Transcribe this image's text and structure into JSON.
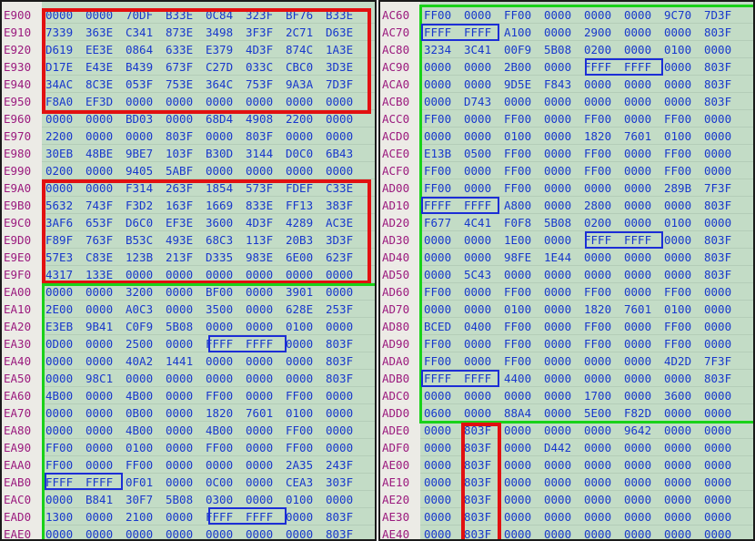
{
  "colors": {
    "background": "#c3dcc6",
    "address": "#9b1a7e",
    "hex": "#1838cc",
    "highlight_red": "#e21010",
    "highlight_green": "#19d219",
    "highlight_blue": "#1c2ed6"
  },
  "left_panel": {
    "rows": [
      {
        "addr": "E900",
        "cells": [
          "0000",
          "0000",
          "70DF",
          "B33E",
          "0C84",
          "323F",
          "BF76",
          "B33E"
        ]
      },
      {
        "addr": "E910",
        "cells": [
          "7339",
          "363E",
          "C341",
          "873E",
          "3498",
          "3F3F",
          "2C71",
          "D63E"
        ]
      },
      {
        "addr": "E920",
        "cells": [
          "D619",
          "EE3E",
          "0864",
          "633E",
          "E379",
          "4D3F",
          "874C",
          "1A3E"
        ]
      },
      {
        "addr": "E930",
        "cells": [
          "D17E",
          "E43E",
          "B439",
          "673F",
          "C27D",
          "033C",
          "CBC0",
          "3D3E"
        ]
      },
      {
        "addr": "E940",
        "cells": [
          "34AC",
          "8C3E",
          "053F",
          "753E",
          "364C",
          "753F",
          "9A3A",
          "7D3F"
        ]
      },
      {
        "addr": "E950",
        "cells": [
          "F8A0",
          "EF3D",
          "0000",
          "0000",
          "0000",
          "0000",
          "0000",
          "0000"
        ]
      },
      {
        "addr": "E960",
        "cells": [
          "0000",
          "0000",
          "BD03",
          "0000",
          "68D4",
          "4908",
          "2200",
          "0000"
        ]
      },
      {
        "addr": "E970",
        "cells": [
          "2200",
          "0000",
          "0000",
          "803F",
          "0000",
          "803F",
          "0000",
          "0000"
        ]
      },
      {
        "addr": "E980",
        "cells": [
          "30EB",
          "48BE",
          "9BE7",
          "103F",
          "B30D",
          "3144",
          "D0C0",
          "6B43"
        ]
      },
      {
        "addr": "E990",
        "cells": [
          "0200",
          "0000",
          "9405",
          "5ABF",
          "0000",
          "0000",
          "0000",
          "0000"
        ]
      },
      {
        "addr": "E9A0",
        "cells": [
          "0000",
          "0000",
          "F314",
          "263F",
          "1854",
          "573F",
          "FDEF",
          "C33E"
        ]
      },
      {
        "addr": "E9B0",
        "cells": [
          "5632",
          "743F",
          "F3D2",
          "163F",
          "1669",
          "833E",
          "FF13",
          "383F"
        ]
      },
      {
        "addr": "E9C0",
        "cells": [
          "3AF6",
          "653F",
          "D6C0",
          "EF3E",
          "3600",
          "4D3F",
          "4289",
          "AC3E"
        ]
      },
      {
        "addr": "E9D0",
        "cells": [
          "F89F",
          "763F",
          "B53C",
          "493E",
          "68C3",
          "113F",
          "20B3",
          "3D3F"
        ]
      },
      {
        "addr": "E9E0",
        "cells": [
          "57E3",
          "C83E",
          "123B",
          "213F",
          "D335",
          "983E",
          "6E00",
          "623F"
        ]
      },
      {
        "addr": "E9F0",
        "cells": [
          "4317",
          "133E",
          "0000",
          "0000",
          "0000",
          "0000",
          "0000",
          "0000"
        ]
      },
      {
        "addr": "EA00",
        "cells": [
          "0000",
          "0000",
          "3200",
          "0000",
          "BF00",
          "0000",
          "3901",
          "0000"
        ]
      },
      {
        "addr": "EA10",
        "cells": [
          "2E00",
          "0000",
          "A0C3",
          "0000",
          "3500",
          "0000",
          "628E",
          "253F"
        ]
      },
      {
        "addr": "EA20",
        "cells": [
          "E3EB",
          "9B41",
          "C0F9",
          "5B08",
          "0000",
          "0000",
          "0100",
          "0000"
        ]
      },
      {
        "addr": "EA30",
        "cells": [
          "0D00",
          "0000",
          "2500",
          "0000",
          "FFFF",
          "FFFF",
          "0000",
          "803F"
        ]
      },
      {
        "addr": "EA40",
        "cells": [
          "0000",
          "0000",
          "40A2",
          "1441",
          "0000",
          "0000",
          "0000",
          "803F"
        ]
      },
      {
        "addr": "EA50",
        "cells": [
          "0000",
          "98C1",
          "0000",
          "0000",
          "0000",
          "0000",
          "0000",
          "803F"
        ]
      },
      {
        "addr": "EA60",
        "cells": [
          "4B00",
          "0000",
          "4B00",
          "0000",
          "FF00",
          "0000",
          "FF00",
          "0000"
        ]
      },
      {
        "addr": "EA70",
        "cells": [
          "0000",
          "0000",
          "0B00",
          "0000",
          "1820",
          "7601",
          "0100",
          "0000"
        ]
      },
      {
        "addr": "EA80",
        "cells": [
          "0000",
          "0000",
          "4B00",
          "0000",
          "4B00",
          "0000",
          "FF00",
          "0000"
        ]
      },
      {
        "addr": "EA90",
        "cells": [
          "FF00",
          "0000",
          "0100",
          "0000",
          "FF00",
          "0000",
          "FF00",
          "0000"
        ]
      },
      {
        "addr": "EAA0",
        "cells": [
          "FF00",
          "0000",
          "FF00",
          "0000",
          "0000",
          "0000",
          "2A35",
          "243F"
        ]
      },
      {
        "addr": "EAB0",
        "cells": [
          "FFFF",
          "FFFF",
          "0F01",
          "0000",
          "0C00",
          "0000",
          "CEA3",
          "303F"
        ]
      },
      {
        "addr": "EAC0",
        "cells": [
          "0000",
          "B841",
          "30F7",
          "5B08",
          "0300",
          "0000",
          "0100",
          "0000"
        ]
      },
      {
        "addr": "EAD0",
        "cells": [
          "1300",
          "0000",
          "2100",
          "0000",
          "FFFF",
          "FFFF",
          "0000",
          "803F"
        ]
      },
      {
        "addr": "EAE0",
        "cells": [
          "0000",
          "0000",
          "0000",
          "0000",
          "0000",
          "0000",
          "0000",
          "803F"
        ]
      }
    ]
  },
  "right_panel": {
    "rows": [
      {
        "addr": "AC60",
        "cells": [
          "FF00",
          "0000",
          "FF00",
          "0000",
          "0000",
          "0000",
          "9C70",
          "7D3F"
        ]
      },
      {
        "addr": "AC70",
        "cells": [
          "FFFF",
          "FFFF",
          "A100",
          "0000",
          "2900",
          "0000",
          "0000",
          "803F"
        ]
      },
      {
        "addr": "AC80",
        "cells": [
          "3234",
          "3C41",
          "00F9",
          "5B08",
          "0200",
          "0000",
          "0100",
          "0000"
        ]
      },
      {
        "addr": "AC90",
        "cells": [
          "0000",
          "0000",
          "2B00",
          "0000",
          "FFFF",
          "FFFF",
          "0000",
          "803F"
        ]
      },
      {
        "addr": "ACA0",
        "cells": [
          "0000",
          "0000",
          "9D5E",
          "F843",
          "0000",
          "0000",
          "0000",
          "803F"
        ]
      },
      {
        "addr": "ACB0",
        "cells": [
          "0000",
          "D743",
          "0000",
          "0000",
          "0000",
          "0000",
          "0000",
          "803F"
        ]
      },
      {
        "addr": "ACC0",
        "cells": [
          "FF00",
          "0000",
          "FF00",
          "0000",
          "FF00",
          "0000",
          "FF00",
          "0000"
        ]
      },
      {
        "addr": "ACD0",
        "cells": [
          "0000",
          "0000",
          "0100",
          "0000",
          "1820",
          "7601",
          "0100",
          "0000"
        ]
      },
      {
        "addr": "ACE0",
        "cells": [
          "E13B",
          "0500",
          "FF00",
          "0000",
          "FF00",
          "0000",
          "FF00",
          "0000"
        ]
      },
      {
        "addr": "ACF0",
        "cells": [
          "FF00",
          "0000",
          "FF00",
          "0000",
          "FF00",
          "0000",
          "FF00",
          "0000"
        ]
      },
      {
        "addr": "AD00",
        "cells": [
          "FF00",
          "0000",
          "FF00",
          "0000",
          "0000",
          "0000",
          "289B",
          "7F3F"
        ]
      },
      {
        "addr": "AD10",
        "cells": [
          "FFFF",
          "FFFF",
          "A800",
          "0000",
          "2800",
          "0000",
          "0000",
          "803F"
        ]
      },
      {
        "addr": "AD20",
        "cells": [
          "F677",
          "4C41",
          "F0F8",
          "5B08",
          "0200",
          "0000",
          "0100",
          "0000"
        ]
      },
      {
        "addr": "AD30",
        "cells": [
          "0000",
          "0000",
          "1E00",
          "0000",
          "FFFF",
          "FFFF",
          "0000",
          "803F"
        ]
      },
      {
        "addr": "AD40",
        "cells": [
          "0000",
          "0000",
          "98FE",
          "1E44",
          "0000",
          "0000",
          "0000",
          "803F"
        ]
      },
      {
        "addr": "AD50",
        "cells": [
          "0000",
          "5C43",
          "0000",
          "0000",
          "0000",
          "0000",
          "0000",
          "803F"
        ]
      },
      {
        "addr": "AD60",
        "cells": [
          "FF00",
          "0000",
          "FF00",
          "0000",
          "FF00",
          "0000",
          "FF00",
          "0000"
        ]
      },
      {
        "addr": "AD70",
        "cells": [
          "0000",
          "0000",
          "0100",
          "0000",
          "1820",
          "7601",
          "0100",
          "0000"
        ]
      },
      {
        "addr": "AD80",
        "cells": [
          "BCED",
          "0400",
          "FF00",
          "0000",
          "FF00",
          "0000",
          "FF00",
          "0000"
        ]
      },
      {
        "addr": "AD90",
        "cells": [
          "FF00",
          "0000",
          "FF00",
          "0000",
          "FF00",
          "0000",
          "FF00",
          "0000"
        ]
      },
      {
        "addr": "ADA0",
        "cells": [
          "FF00",
          "0000",
          "FF00",
          "0000",
          "0000",
          "0000",
          "4D2D",
          "7F3F"
        ]
      },
      {
        "addr": "ADB0",
        "cells": [
          "FFFF",
          "FFFF",
          "4400",
          "0000",
          "0000",
          "0000",
          "0000",
          "803F"
        ]
      },
      {
        "addr": "ADC0",
        "cells": [
          "0000",
          "0000",
          "0000",
          "0000",
          "1700",
          "0000",
          "3600",
          "0000"
        ]
      },
      {
        "addr": "ADD0",
        "cells": [
          "0600",
          "0000",
          "88A4",
          "0000",
          "5E00",
          "F82D",
          "0000",
          "0000"
        ]
      },
      {
        "addr": "ADE0",
        "cells": [
          "0000",
          "803F",
          "0000",
          "0000",
          "0000",
          "9642",
          "0000",
          "0000"
        ]
      },
      {
        "addr": "ADF0",
        "cells": [
          "0000",
          "803F",
          "0000",
          "D442",
          "0000",
          "0000",
          "0000",
          "0000"
        ]
      },
      {
        "addr": "AE00",
        "cells": [
          "0000",
          "803F",
          "0000",
          "0000",
          "0000",
          "0000",
          "0000",
          "0000"
        ]
      },
      {
        "addr": "AE10",
        "cells": [
          "0000",
          "803F",
          "0000",
          "0000",
          "0000",
          "0000",
          "0000",
          "0000"
        ]
      },
      {
        "addr": "AE20",
        "cells": [
          "0000",
          "803F",
          "0000",
          "0000",
          "0000",
          "0000",
          "0000",
          "0000"
        ]
      },
      {
        "addr": "AE30",
        "cells": [
          "0000",
          "803F",
          "0000",
          "0000",
          "0000",
          "0000",
          "0000",
          "0000"
        ]
      },
      {
        "addr": "AE40",
        "cells": [
          "0000",
          "803F",
          "0000",
          "0000",
          "0000",
          "0000",
          "0000",
          "0000"
        ]
      }
    ]
  }
}
